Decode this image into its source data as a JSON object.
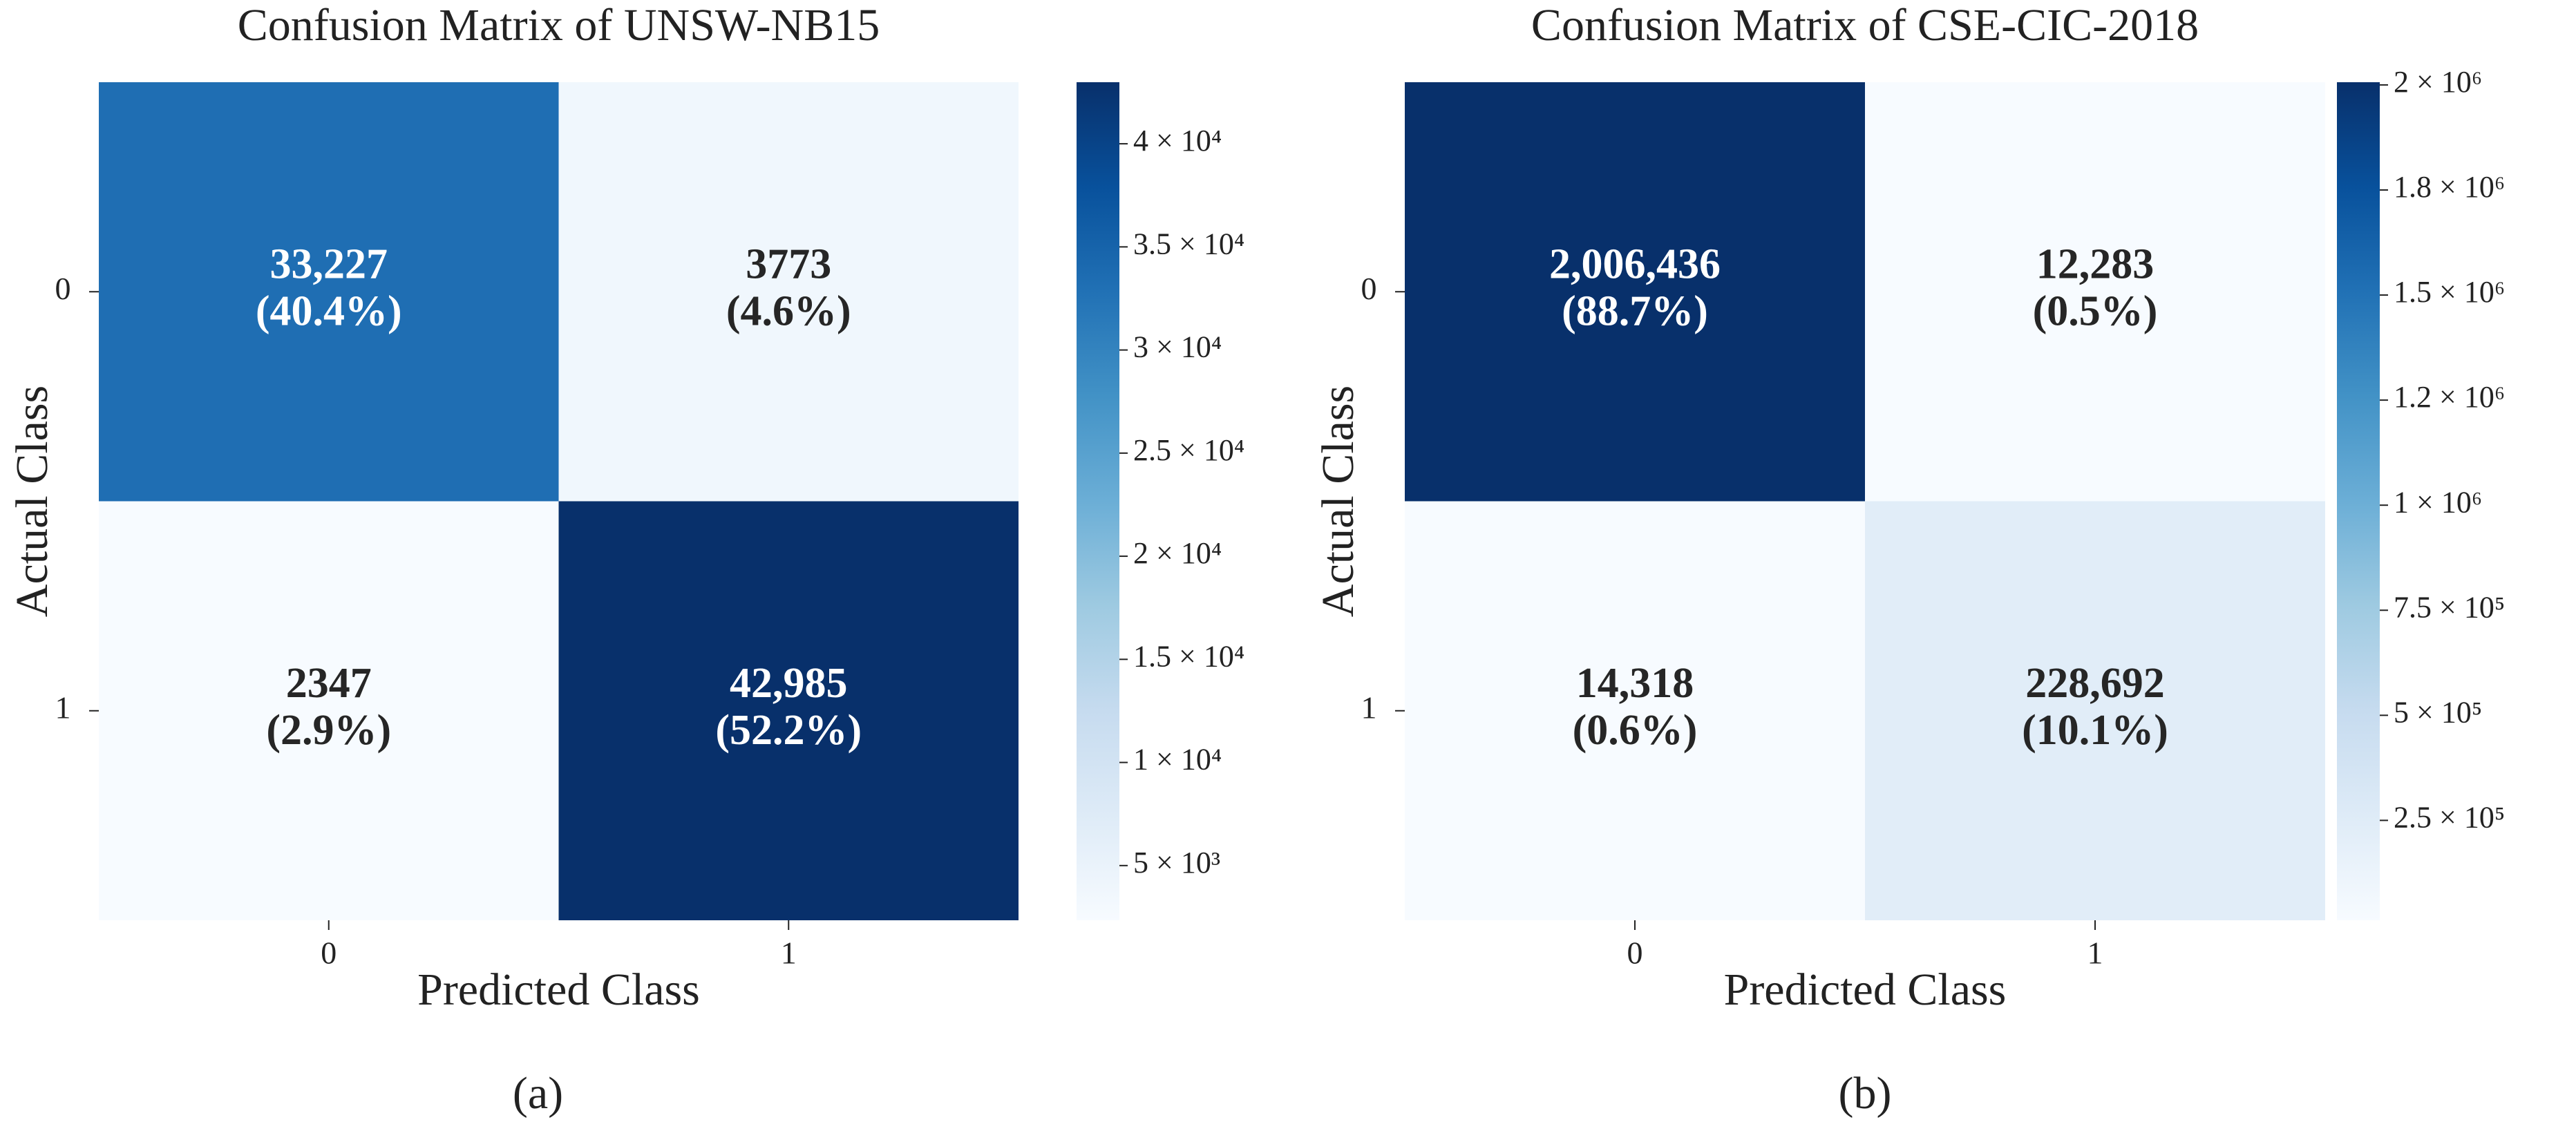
{
  "chart_data": [
    {
      "type": "heatmap",
      "title": "Confusion Matrix of UNSW-NB15",
      "xlabel": "Predicted Class",
      "ylabel": "Actual Class",
      "caption": "(a)",
      "x": [
        "0",
        "1"
      ],
      "y": [
        "0",
        "1"
      ],
      "values": [
        [
          33227,
          3773
        ],
        [
          2347,
          42985
        ]
      ],
      "value_labels": [
        [
          "33,227",
          "3773"
        ],
        [
          "2347",
          "42,985"
        ]
      ],
      "percent_labels": [
        [
          "(40.4%)",
          "(4.6%)"
        ],
        [
          "(2.9%)",
          "(52.2%)"
        ]
      ],
      "colormap": [
        "#f7fbff",
        "#deebf7",
        "#c6dbef",
        "#9ecae1",
        "#6baed6",
        "#4292c6",
        "#2171b5",
        "#08519c",
        "#08306b"
      ],
      "clim": [
        2347,
        42985
      ],
      "cticks": [
        {
          "value": 5000,
          "label": "5 × 10³"
        },
        {
          "value": 10000,
          "label": "1 × 10⁴"
        },
        {
          "value": 15000,
          "label": "1.5 × 10⁴"
        },
        {
          "value": 20000,
          "label": "2 × 10⁴"
        },
        {
          "value": 25000,
          "label": "2.5 × 10⁴"
        },
        {
          "value": 30000,
          "label": "3 × 10⁴"
        },
        {
          "value": 35000,
          "label": "3.5 × 10⁴"
        },
        {
          "value": 40000,
          "label": "4 × 10⁴"
        }
      ]
    },
    {
      "type": "heatmap",
      "title": "Confusion Matrix of CSE-CIC-2018",
      "xlabel": "Predicted Class",
      "ylabel": "Actual Class",
      "caption": "(b)",
      "x": [
        "0",
        "1"
      ],
      "y": [
        "0",
        "1"
      ],
      "values": [
        [
          2006436,
          12283
        ],
        [
          14318,
          228692
        ]
      ],
      "value_labels": [
        [
          "2,006,436",
          "12,283"
        ],
        [
          "14,318",
          "228,692"
        ]
      ],
      "percent_labels": [
        [
          "(88.7%)",
          "(0.5%)"
        ],
        [
          "(0.6%)",
          "(10.1%)"
        ]
      ],
      "colormap": [
        "#f7fbff",
        "#deebf7",
        "#c6dbef",
        "#9ecae1",
        "#6baed6",
        "#4292c6",
        "#2171b5",
        "#08519c",
        "#08306b"
      ],
      "clim": [
        12283,
        2006436
      ],
      "cticks": [
        {
          "value": 250000,
          "label": "2.5 × 10⁵"
        },
        {
          "value": 500000,
          "label": "5 × 10⁵"
        },
        {
          "value": 750000,
          "label": "7.5 × 10⁵"
        },
        {
          "value": 1000000,
          "label": "1 × 10⁶"
        },
        {
          "value": 1250000,
          "label": "1.2 × 10⁶"
        },
        {
          "value": 1500000,
          "label": "1.5 × 10⁶"
        },
        {
          "value": 1750000,
          "label": "1.8 × 10⁶"
        },
        {
          "value": 2000000,
          "label": "2 × 10⁶"
        }
      ]
    }
  ]
}
